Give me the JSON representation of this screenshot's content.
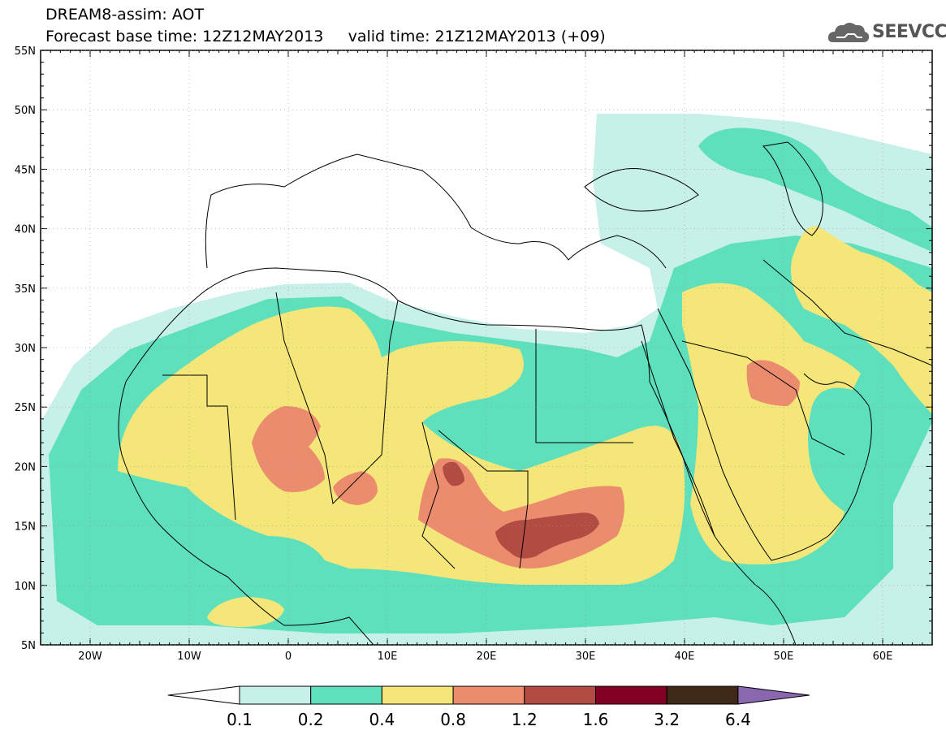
{
  "title": {
    "line1": "DREAM8-assim: AOT",
    "line2_base": "Forecast base time: 12Z12MAY2013",
    "line2_valid": "valid time: 21Z12MAY2013 (+09)"
  },
  "logo": {
    "text": "SEEVCCC",
    "icon": "cloud-icon"
  },
  "map": {
    "lon_range": [
      -25,
      65
    ],
    "lat_range": [
      5,
      55
    ],
    "lat_labels": [
      "5N",
      "10N",
      "15N",
      "20N",
      "25N",
      "30N",
      "35N",
      "40N",
      "45N",
      "50N",
      "55N"
    ],
    "lon_labels": [
      "20W",
      "10W",
      "0",
      "10E",
      "20E",
      "30E",
      "40E",
      "50E",
      "60E"
    ]
  },
  "legend": {
    "colors": [
      "#ffffff",
      "#c6f0e8",
      "#5fe0bd",
      "#f5e67a",
      "#eb8c6e",
      "#b24c42",
      "#820024",
      "#3f2818",
      "#8a68b0"
    ],
    "labels": [
      "0.1",
      "0.2",
      "0.4",
      "0.8",
      "1.2",
      "1.6",
      "3.2",
      "6.4"
    ]
  }
}
